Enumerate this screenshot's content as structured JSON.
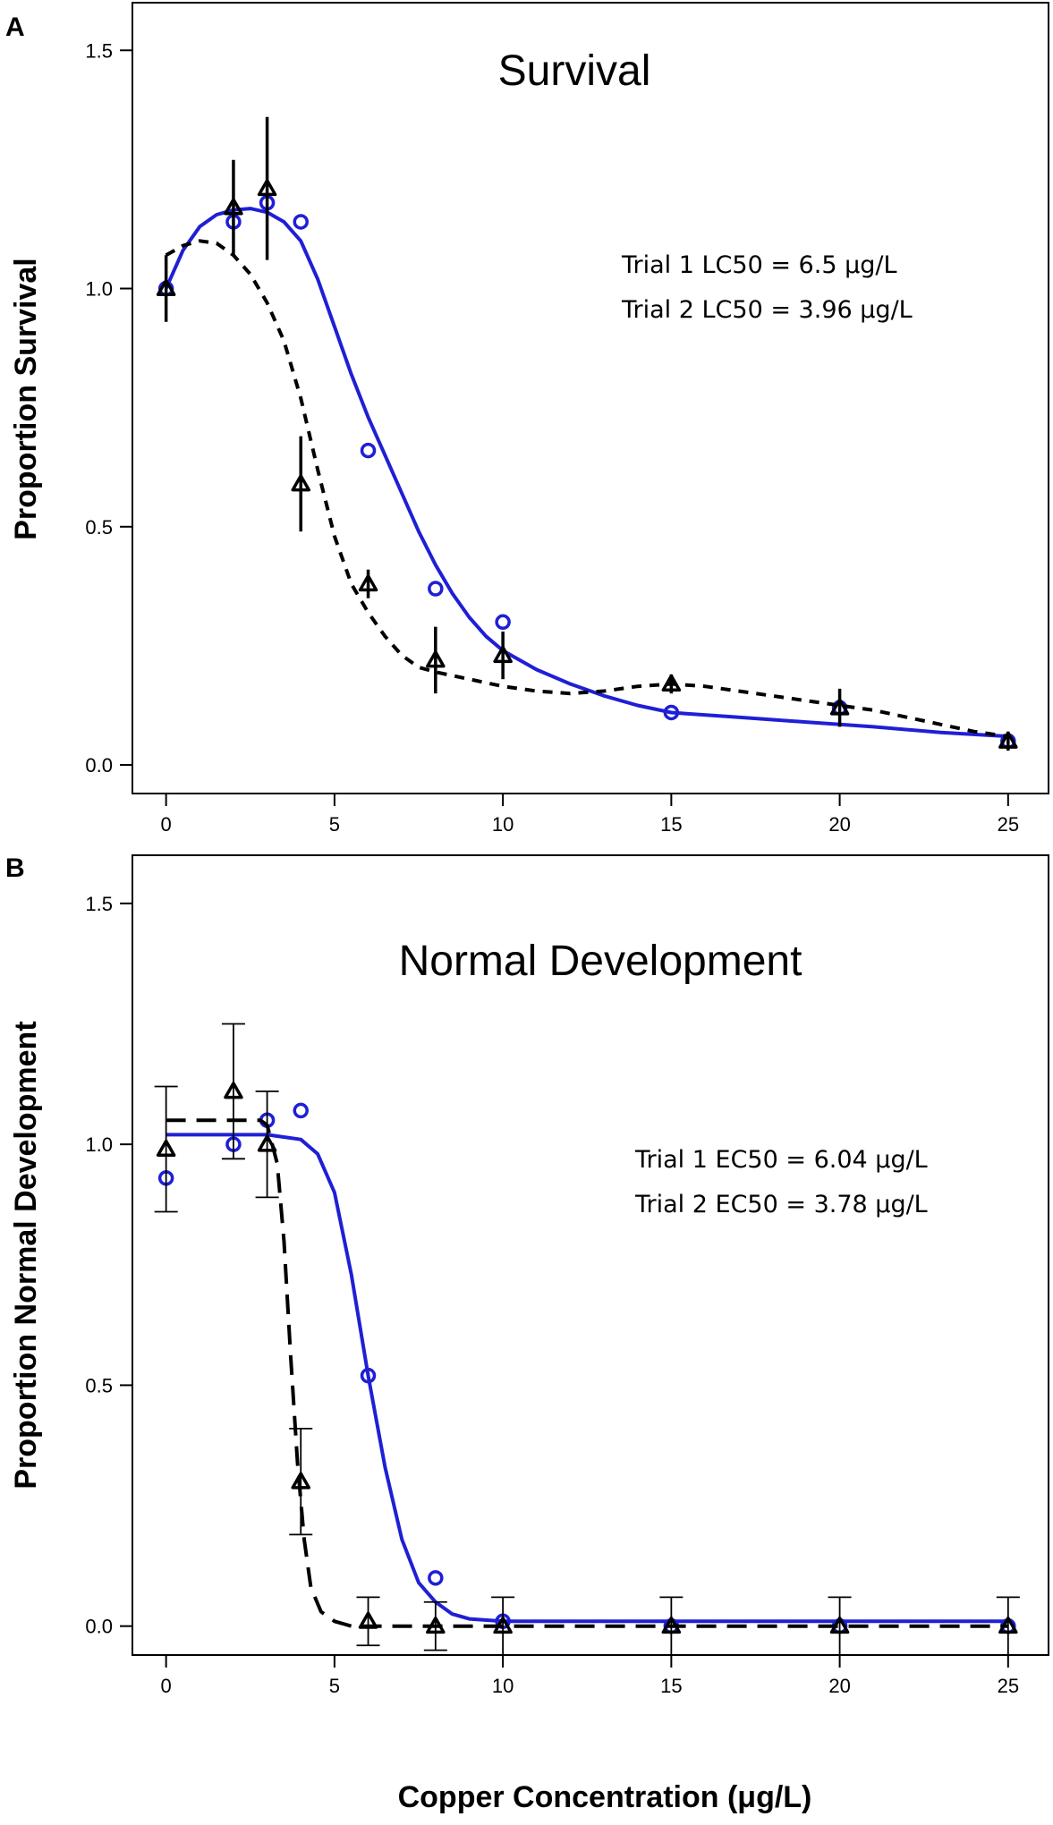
{
  "colors": {
    "trial1": "#1f1fd6",
    "trial2": "#000000"
  },
  "chart_data": [
    {
      "panel": "A",
      "type": "line",
      "title": "Survival",
      "ylabel": "Proportion Survival",
      "xlabel": "",
      "xlim": [
        -1,
        26.2
      ],
      "ylim": [
        -0.06,
        1.6
      ],
      "xticks": [
        0,
        5,
        10,
        15,
        20,
        25
      ],
      "yticks": [
        "0.0",
        "0.5",
        "1.0",
        "1.5"
      ],
      "annotations": [
        "Trial 1 LC50 = 6.5 μg/L",
        "Trial 2 LC50 = 3.96 μg/L"
      ],
      "error_style": "line",
      "series": [
        {
          "name": "Trial 1",
          "marker": "circle",
          "x": [
            0,
            2,
            3,
            4,
            6,
            8,
            10,
            15,
            20,
            25
          ],
          "y": [
            1.0,
            1.14,
            1.18,
            1.14,
            0.66,
            0.37,
            0.3,
            0.11,
            0.12,
            0.05
          ],
          "err": [
            0,
            0,
            0,
            0,
            0,
            0,
            0,
            0,
            0,
            0
          ],
          "fit": [
            [
              0,
              1.0
            ],
            [
              0.5,
              1.08
            ],
            [
              1,
              1.13
            ],
            [
              1.5,
              1.155
            ],
            [
              2,
              1.165
            ],
            [
              2.5,
              1.168
            ],
            [
              3,
              1.16
            ],
            [
              3.5,
              1.14
            ],
            [
              4,
              1.1
            ],
            [
              4.5,
              1.02
            ],
            [
              5,
              0.92
            ],
            [
              5.5,
              0.82
            ],
            [
              6,
              0.73
            ],
            [
              6.5,
              0.65
            ],
            [
              7,
              0.57
            ],
            [
              7.5,
              0.49
            ],
            [
              8,
              0.42
            ],
            [
              8.5,
              0.36
            ],
            [
              9,
              0.31
            ],
            [
              9.5,
              0.27
            ],
            [
              10,
              0.24
            ],
            [
              11,
              0.2
            ],
            [
              12,
              0.17
            ],
            [
              13,
              0.145
            ],
            [
              14,
              0.125
            ],
            [
              15,
              0.11
            ],
            [
              17,
              0.1
            ],
            [
              19,
              0.09
            ],
            [
              21,
              0.08
            ],
            [
              23,
              0.068
            ],
            [
              25,
              0.06
            ]
          ]
        },
        {
          "name": "Trial 2",
          "marker": "triangle",
          "x": [
            0,
            2,
            3,
            4,
            6,
            8,
            10,
            15,
            20,
            25
          ],
          "y": [
            1.0,
            1.17,
            1.21,
            0.59,
            0.38,
            0.22,
            0.23,
            0.17,
            0.12,
            0.05
          ],
          "err": [
            0.07,
            0.1,
            0.15,
            0.1,
            0.03,
            0.07,
            0.05,
            0.02,
            0.04,
            0.02
          ],
          "fit": [
            [
              0,
              1.07
            ],
            [
              0.5,
              1.09
            ],
            [
              1,
              1.1
            ],
            [
              1.5,
              1.095
            ],
            [
              2,
              1.07
            ],
            [
              2.5,
              1.03
            ],
            [
              3,
              0.97
            ],
            [
              3.5,
              0.89
            ],
            [
              4,
              0.77
            ],
            [
              4.5,
              0.62
            ],
            [
              5,
              0.48
            ],
            [
              5.5,
              0.38
            ],
            [
              6,
              0.32
            ],
            [
              6.5,
              0.27
            ],
            [
              7,
              0.23
            ],
            [
              7.5,
              0.205
            ],
            [
              8,
              0.195
            ],
            [
              9,
              0.18
            ],
            [
              10,
              0.165
            ],
            [
              11,
              0.155
            ],
            [
              12,
              0.15
            ],
            [
              13,
              0.155
            ],
            [
              14,
              0.165
            ],
            [
              15,
              0.17
            ],
            [
              16,
              0.165
            ],
            [
              17,
              0.155
            ],
            [
              18,
              0.145
            ],
            [
              19,
              0.135
            ],
            [
              20,
              0.125
            ],
            [
              21,
              0.115
            ],
            [
              22,
              0.1
            ],
            [
              23,
              0.085
            ],
            [
              24,
              0.07
            ],
            [
              25,
              0.06
            ]
          ]
        }
      ]
    },
    {
      "panel": "B",
      "type": "line",
      "title": "Normal Development",
      "ylabel": "Proportion Normal Development",
      "xlabel": "Copper Concentration (μg/L)",
      "xlim": [
        -1,
        26.2
      ],
      "ylim": [
        -0.06,
        1.6
      ],
      "xticks": [
        0,
        5,
        10,
        15,
        20,
        25
      ],
      "yticks": [
        "0.0",
        "0.5",
        "1.0",
        "1.5"
      ],
      "annotations": [
        "Trial 1 EC50 = 6.04 μg/L",
        "Trial 2 EC50 = 3.78 μg/L"
      ],
      "error_style": "capped",
      "series": [
        {
          "name": "Trial 1",
          "marker": "circle",
          "x": [
            0,
            2,
            3,
            4,
            6,
            8,
            10,
            15,
            20,
            25
          ],
          "y": [
            0.93,
            1.0,
            1.05,
            1.07,
            0.52,
            0.1,
            0.01,
            0.0,
            0.0,
            0.0
          ],
          "err": [
            0,
            0,
            0,
            0,
            0,
            0,
            0,
            0,
            0,
            0
          ],
          "fit": [
            [
              0,
              1.02
            ],
            [
              3,
              1.02
            ],
            [
              4,
              1.01
            ],
            [
              4.5,
              0.98
            ],
            [
              5,
              0.9
            ],
            [
              5.5,
              0.73
            ],
            [
              6,
              0.52
            ],
            [
              6.5,
              0.33
            ],
            [
              7,
              0.18
            ],
            [
              7.5,
              0.09
            ],
            [
              8,
              0.05
            ],
            [
              8.5,
              0.025
            ],
            [
              9,
              0.015
            ],
            [
              10,
              0.01
            ],
            [
              15,
              0.01
            ],
            [
              25,
              0.01
            ]
          ]
        },
        {
          "name": "Trial 2",
          "marker": "triangle",
          "x": [
            0,
            2,
            3,
            4,
            6,
            8,
            10,
            15,
            20,
            25
          ],
          "y": [
            0.99,
            1.11,
            1.0,
            0.3,
            0.01,
            0.0,
            0.0,
            0.0,
            0.0,
            0.0
          ],
          "err": [
            0.13,
            0.14,
            0.11,
            0.11,
            0.05,
            0.05,
            0.06,
            0.06,
            0.06,
            0.06
          ],
          "fit": [
            [
              0,
              1.05
            ],
            [
              2.8,
              1.05
            ],
            [
              3,
              1.04
            ],
            [
              3.3,
              0.96
            ],
            [
              3.5,
              0.8
            ],
            [
              3.7,
              0.56
            ],
            [
              3.9,
              0.34
            ],
            [
              4.1,
              0.18
            ],
            [
              4.3,
              0.08
            ],
            [
              4.6,
              0.03
            ],
            [
              5,
              0.01
            ],
            [
              5.5,
              0.0
            ],
            [
              25,
              0.0
            ]
          ]
        }
      ]
    }
  ]
}
